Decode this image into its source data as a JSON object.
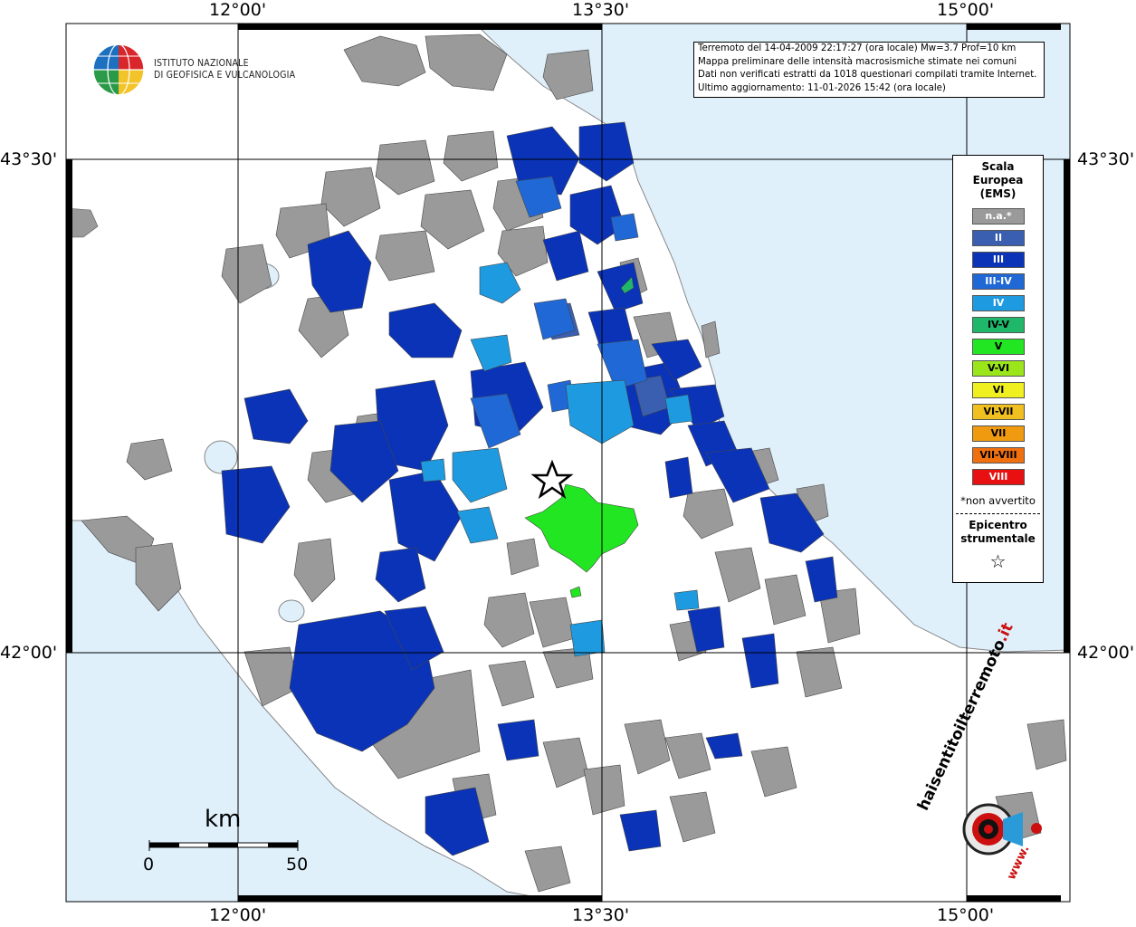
{
  "map": {
    "lon_labels_top": [
      "12°00'",
      "13°30'",
      "15°00'"
    ],
    "lon_labels_bottom": [
      "12°00'",
      "13°30'",
      "15°00'"
    ],
    "lat_labels_left": [
      "43°30'",
      "42°00'"
    ],
    "lat_labels_right": [
      "43°30'",
      "42°00'"
    ]
  },
  "logo": {
    "line1": "ISTITUTO NAZIONALE",
    "line2": "DI GEOFISICA E VULCANOLOGIA"
  },
  "info": {
    "line1": "Terremoto del 14-04-2009 22:17:27 (ora locale) Mw=3.7 Prof=10 km",
    "line2": "Mappa preliminare delle intensità macrosismiche stimate nei comuni",
    "line3": "Dati non verificati estratti da 1018 questionari compilati tramite Internet.",
    "line4": "Ultimo aggiornamento: 11-01-2026 15:42 (ora locale)"
  },
  "legend": {
    "title1": "Scala",
    "title2": "Europea",
    "title3": "(EMS)",
    "items": [
      {
        "label": "n.a.*",
        "color": "#9a9a9a",
        "text": "#ffffff"
      },
      {
        "label": "II",
        "color": "#3a5fb0",
        "text": "#ffffff"
      },
      {
        "label": "III",
        "color": "#0a33b8",
        "text": "#ffffff"
      },
      {
        "label": "III-IV",
        "color": "#1f68d6",
        "text": "#ffffff"
      },
      {
        "label": "IV",
        "color": "#1e9be0",
        "text": "#ffffff"
      },
      {
        "label": "IV-V",
        "color": "#1fb86a",
        "text": "#000000"
      },
      {
        "label": "V",
        "color": "#22e622",
        "text": "#000000"
      },
      {
        "label": "V-VI",
        "color": "#9ae61a",
        "text": "#000000"
      },
      {
        "label": "VI",
        "color": "#f0f020",
        "text": "#000000"
      },
      {
        "label": "VI-VII",
        "color": "#f0c020",
        "text": "#000000"
      },
      {
        "label": "VII",
        "color": "#f09a10",
        "text": "#000000"
      },
      {
        "label": "VII-VIII",
        "color": "#f07010",
        "text": "#000000"
      },
      {
        "label": "VIII",
        "color": "#e81010",
        "text": "#ffffff"
      }
    ],
    "note": "*non avvertito",
    "epicentre1": "Epicentro",
    "epicentre2": "strumentale",
    "star": "☆"
  },
  "scale": {
    "unit": "km",
    "min_label": "0",
    "max_label": "50"
  },
  "badge": {
    "text_main": "haisentito",
    "text_accent": "ilterremoto",
    "tld": ".it",
    "www": "www."
  },
  "colors": {
    "sea": "#dff0fb",
    "land": "#ffffff",
    "na": "#9a9a9a",
    "ii": "#3a5fb0",
    "iii": "#0a33b8",
    "iii_iv": "#1f68d6",
    "iv": "#1e9be0",
    "iv_v": "#1fb86a",
    "v": "#22e622"
  }
}
